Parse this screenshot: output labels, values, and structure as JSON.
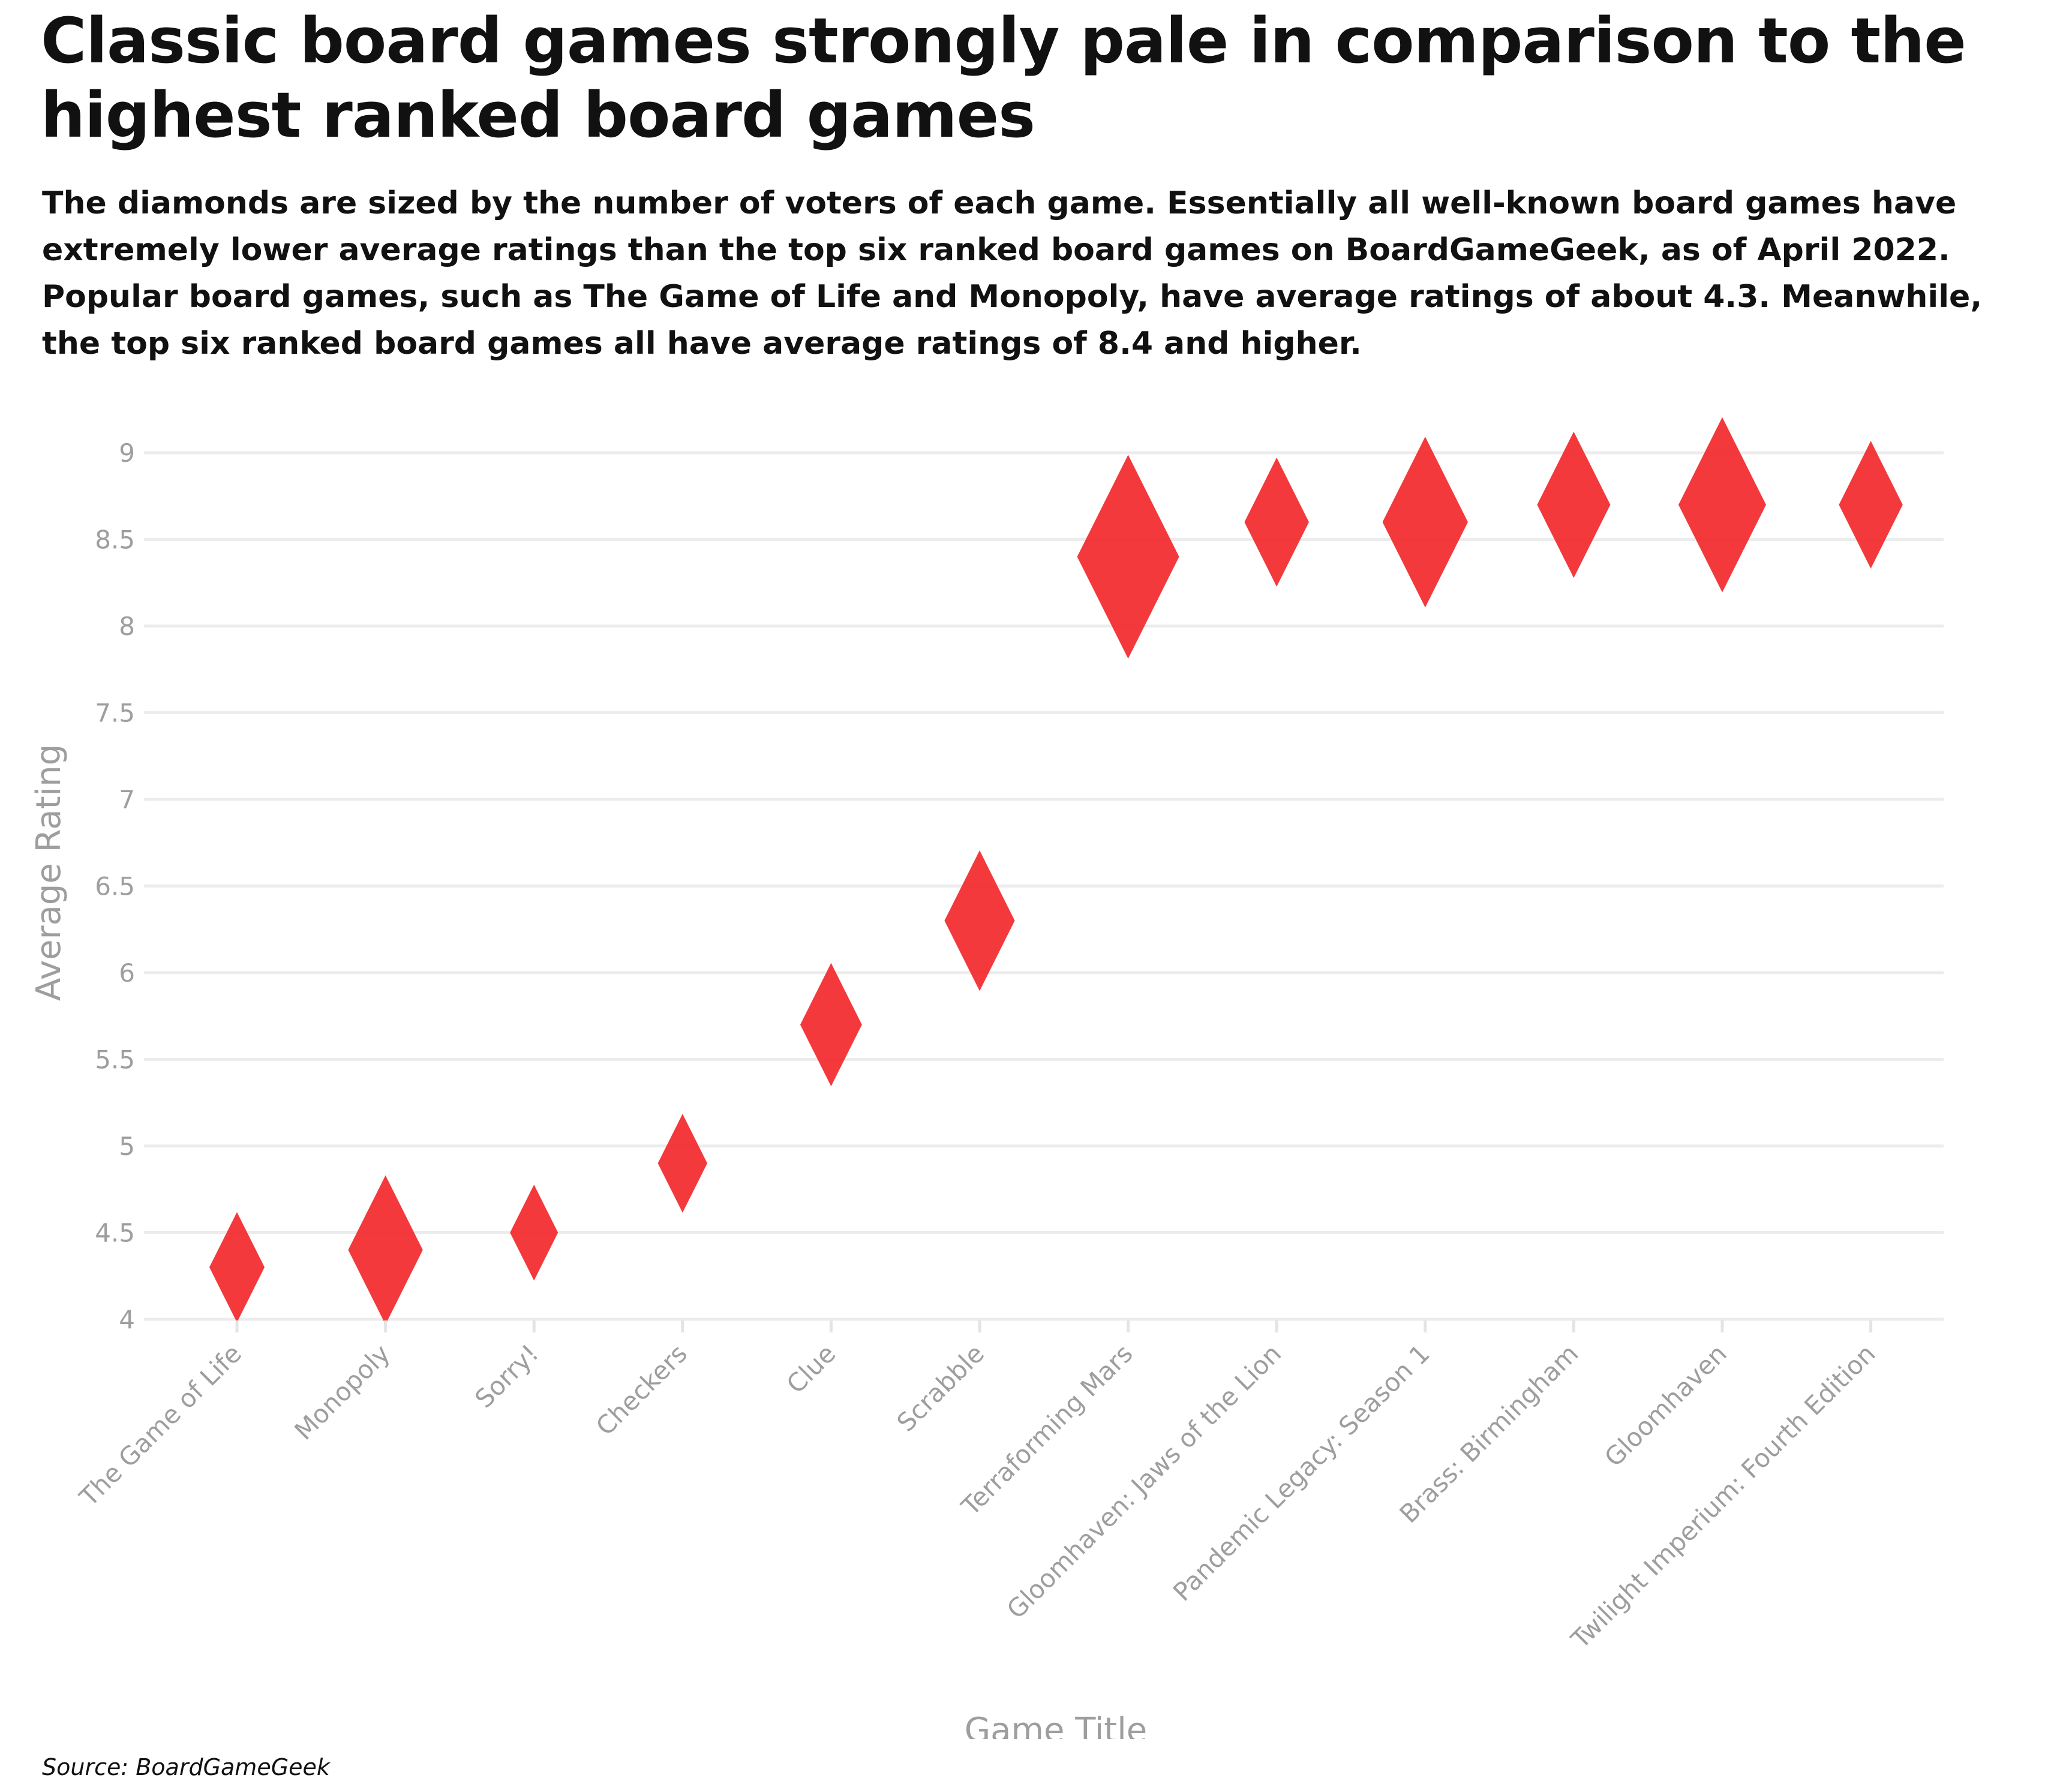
{
  "title": "Classic board games strongly pale in comparison to the highest ranked board games",
  "subtitle": "The diamonds are sized by the number of voters of each game. Essentially all well-known board games have extremely lower average ratings than the top six ranked board games on BoardGameGeek, as of April 2022. Popular board games, such as The Game of Life and Monopoly, have average ratings of about 4.3. Meanwhile, the top six ranked board games all have average ratings of 8.4 and higher.",
  "source": "Source: BoardGameGeek",
  "chart_data": {
    "type": "scatter",
    "marker": "diamond",
    "marker_color": "#f22e32",
    "xlabel": "Game Title",
    "ylabel": "Average Rating",
    "ylim": [
      4,
      9
    ],
    "yticks": [
      4,
      4.5,
      5,
      5.5,
      6,
      6.5,
      7,
      7.5,
      8,
      8.5,
      9
    ],
    "grid": true,
    "points": [
      {
        "game": "The Game of Life",
        "rating": 4.3,
        "size": 0.35
      },
      {
        "game": "Monopoly",
        "rating": 4.4,
        "size": 0.62
      },
      {
        "game": "Sorry!",
        "rating": 4.5,
        "size": 0.25
      },
      {
        "game": "Checkers",
        "rating": 4.9,
        "size": 0.27
      },
      {
        "game": "Clue",
        "rating": 5.7,
        "size": 0.44
      },
      {
        "game": "Scrabble",
        "rating": 6.3,
        "size": 0.56
      },
      {
        "game": "Terraforming Mars",
        "rating": 8.4,
        "size": 1.0
      },
      {
        "game": "Gloomhaven: Jaws of the Lion",
        "rating": 8.6,
        "size": 0.48
      },
      {
        "game": "Pandemic Legacy: Season 1",
        "rating": 8.6,
        "size": 0.77
      },
      {
        "game": "Brass: Birmingham",
        "rating": 8.7,
        "size": 0.6
      },
      {
        "game": "Gloomhaven",
        "rating": 8.7,
        "size": 0.8
      },
      {
        "game": "Twilight Imperium: Fourth Edition",
        "rating": 8.7,
        "size": 0.47
      }
    ]
  }
}
